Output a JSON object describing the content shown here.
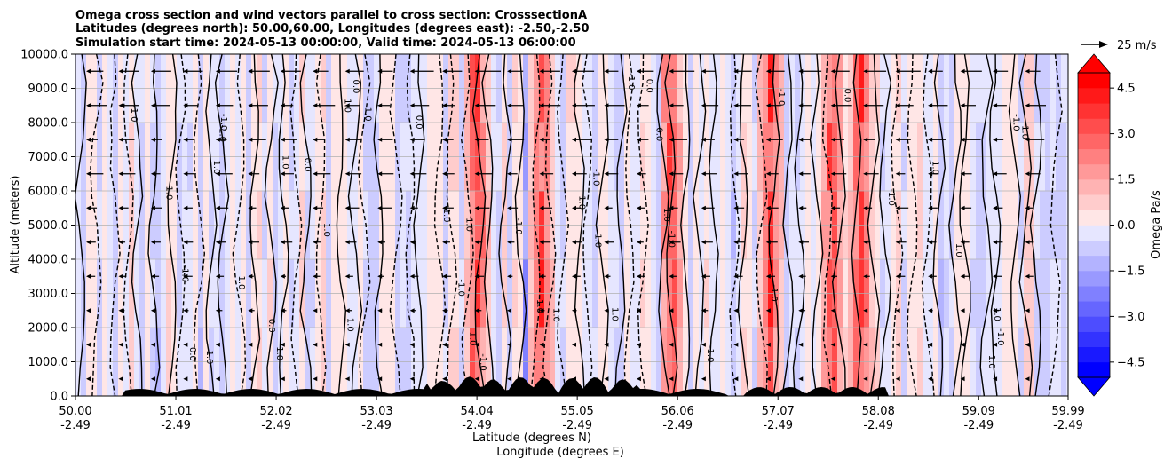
{
  "chart_data": {
    "type": "heatmap",
    "title_lines": [
      "Omega cross section and wind vectors parallel to cross section: CrosssectionA",
      "Latitudes (degrees north): 50.00,60.00, Longitudes (degrees east): -2.50,-2.50",
      "Simulation start time: 2024-05-13 00:00:00, Valid time: 2024-05-13 06:00:00"
    ],
    "ylabel": "Altitude (meters)",
    "xlabel_lat": "Latitude (degrees N)",
    "xlabel_lon": "Longitude (degrees E)",
    "ylim": [
      0,
      10000
    ],
    "y_ticks": [
      "0.0",
      "1000.0",
      "2000.0",
      "3000.0",
      "4000.0",
      "5000.0",
      "6000.0",
      "7000.0",
      "8000.0",
      "9000.0",
      "10000.0"
    ],
    "x_ticks": [
      {
        "lat": "50.00",
        "lon": "-2.49"
      },
      {
        "lat": "51.01",
        "lon": "-2.49"
      },
      {
        "lat": "52.02",
        "lon": "-2.49"
      },
      {
        "lat": "53.03",
        "lon": "-2.49"
      },
      {
        "lat": "54.04",
        "lon": "-2.49"
      },
      {
        "lat": "55.05",
        "lon": "-2.49"
      },
      {
        "lat": "56.06",
        "lon": "-2.49"
      },
      {
        "lat": "57.07",
        "lon": "-2.49"
      },
      {
        "lat": "58.08",
        "lon": "-2.49"
      },
      {
        "lat": "59.09",
        "lon": "-2.49"
      },
      {
        "lat": "59.99",
        "lon": "-2.49"
      }
    ],
    "xlim_lat": [
      50.0,
      59.99
    ],
    "grid_horizontal": true,
    "colorbar": {
      "label": "Omega Pa/s",
      "min": -5.0,
      "max": 5.0,
      "ticks": [
        "4.5",
        "3.0",
        "1.5",
        "0.0",
        "−1.5",
        "−3.0",
        "−4.5"
      ],
      "tick_values": [
        4.5,
        3.0,
        1.5,
        0.0,
        -1.5,
        -3.0,
        -4.5
      ],
      "colors": [
        "#0000ff",
        "#ff0000"
      ],
      "extend": "both"
    },
    "quiver_key": "25 m/s",
    "contour_labels": [
      "0.0",
      "1.0",
      "-1.0"
    ],
    "vectors_direction": "leftward at upper levels, weak near surface",
    "strong_cores": [
      {
        "lat": 54.04,
        "kind": "positive"
      },
      {
        "lat": 54.7,
        "kind": "positive"
      },
      {
        "lat": 54.6,
        "kind": "negative"
      },
      {
        "lat": 56.0,
        "kind": "positive"
      },
      {
        "lat": 57.0,
        "kind": "positive"
      },
      {
        "lat": 57.6,
        "kind": "positive"
      },
      {
        "lat": 57.9,
        "kind": "positive"
      }
    ]
  }
}
